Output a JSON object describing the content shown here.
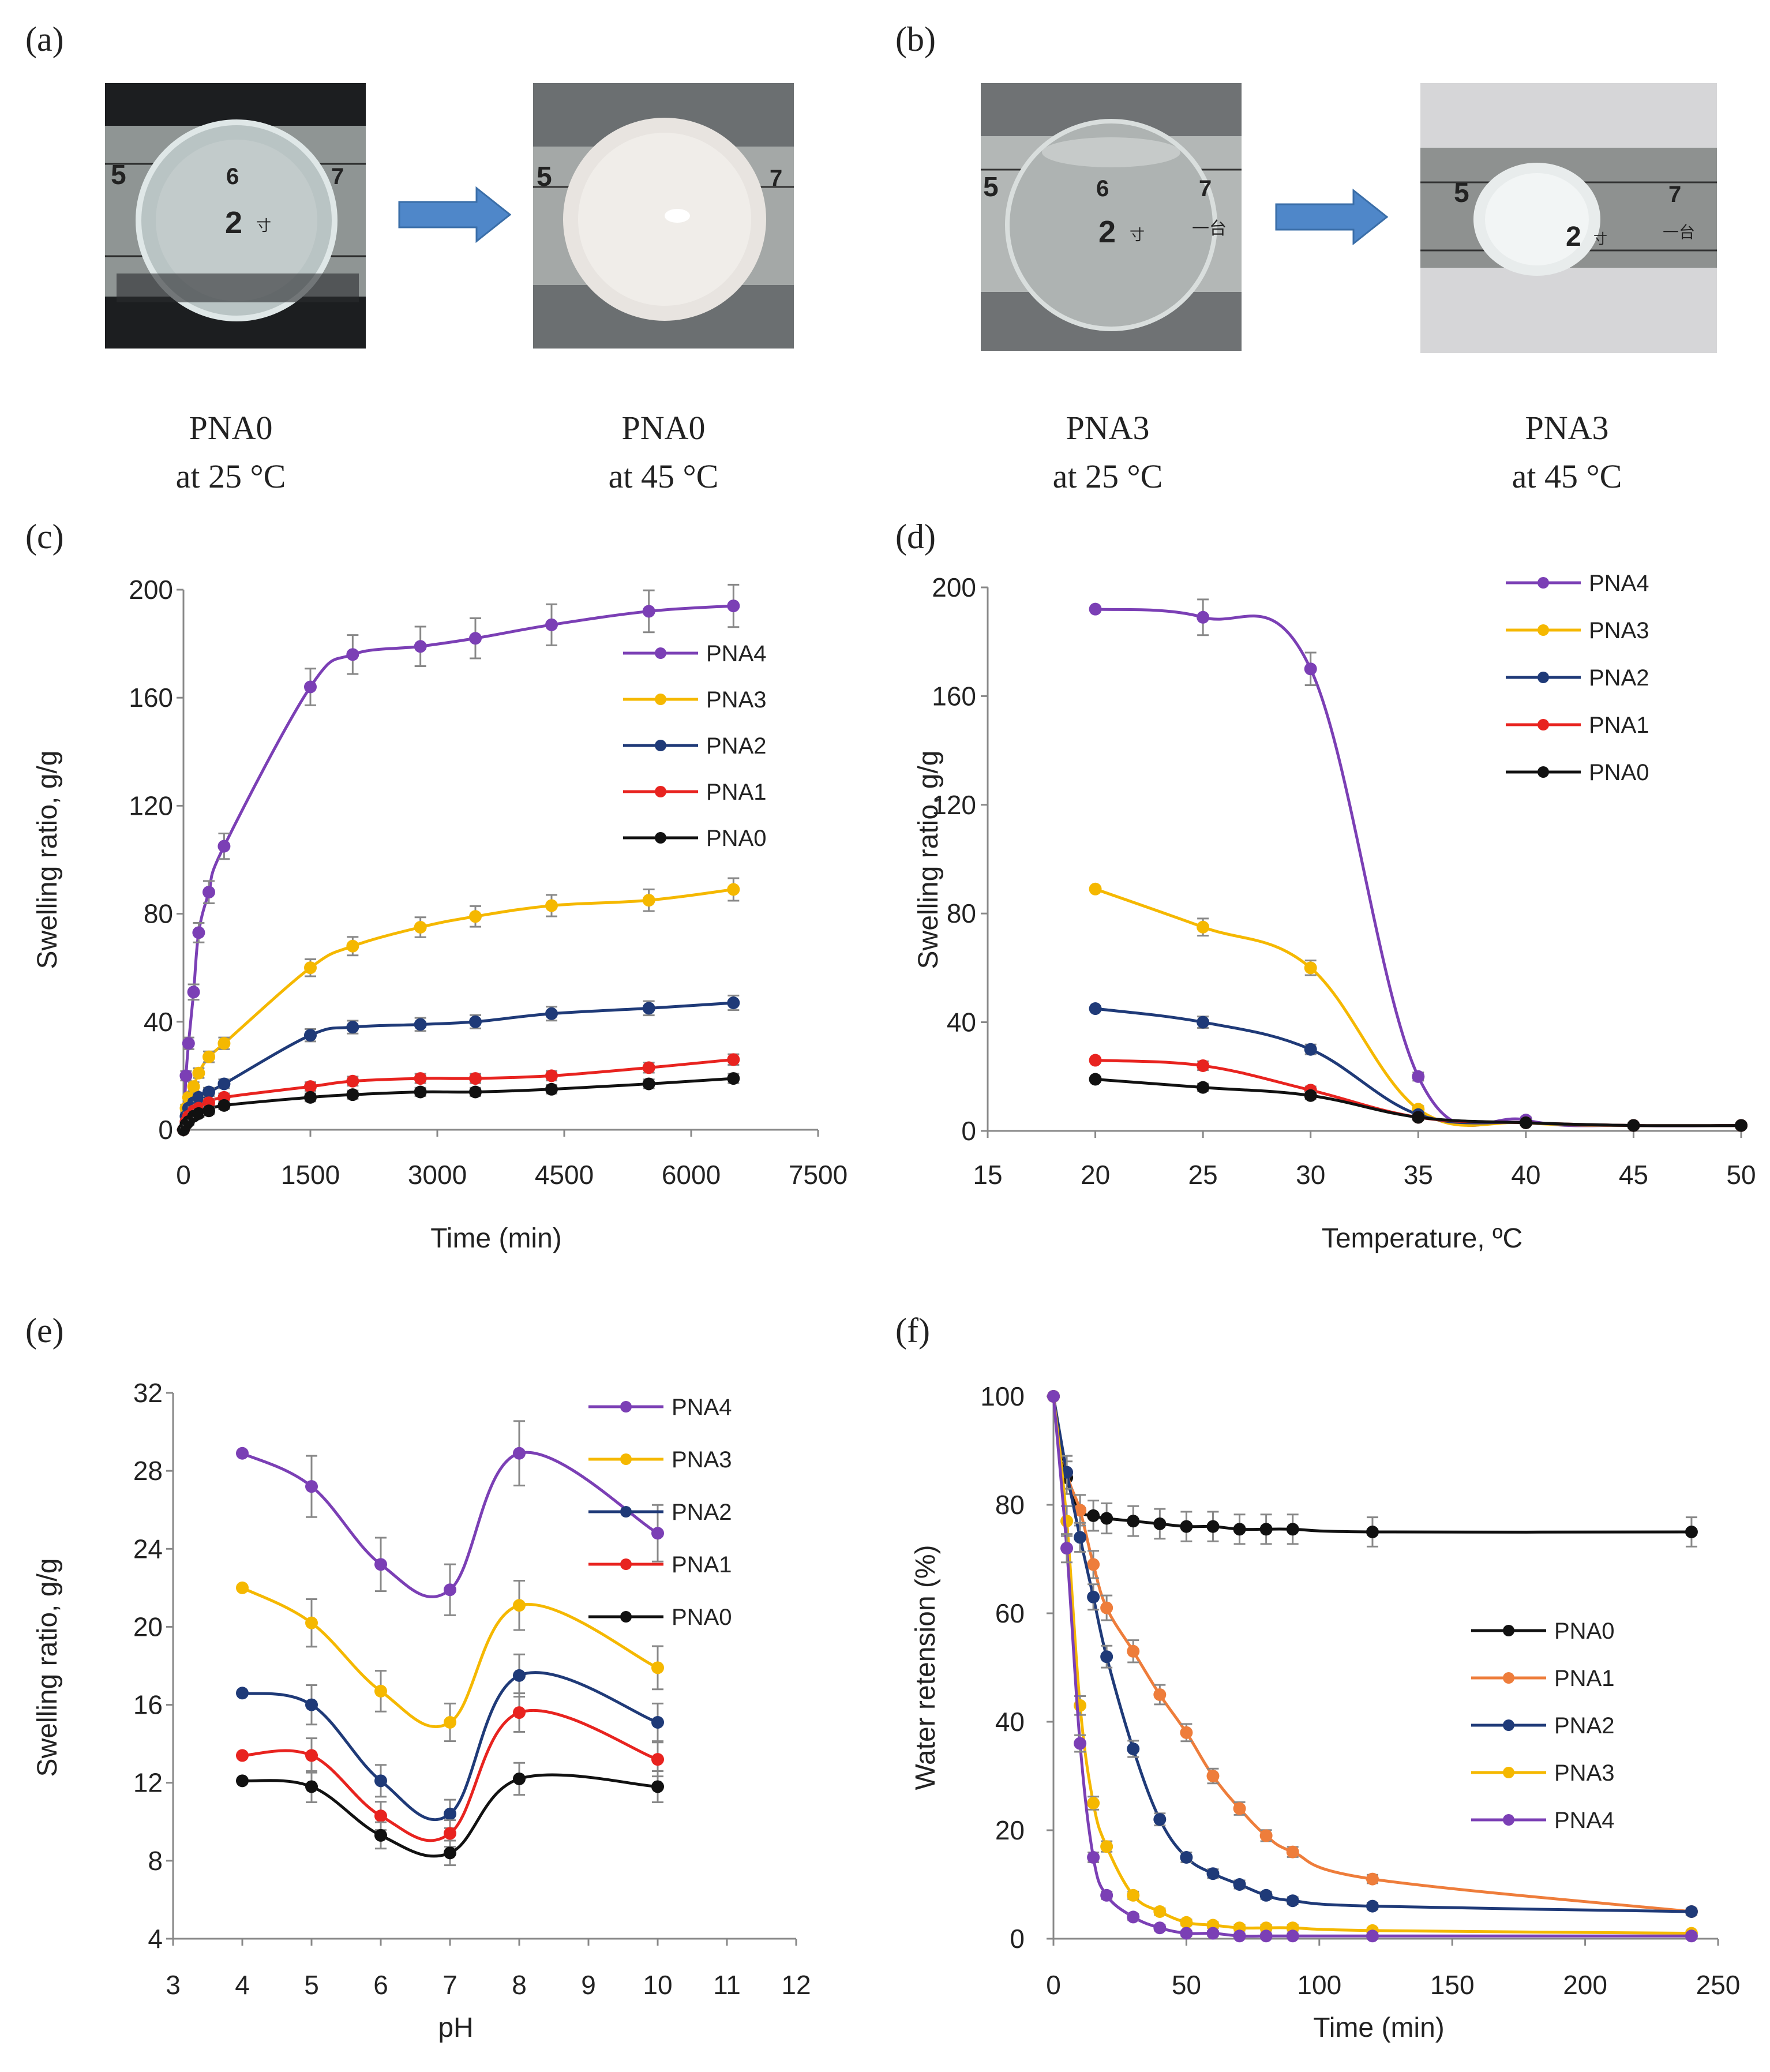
{
  "panel_labels": {
    "a": "(a)",
    "b": "(b)",
    "c": "(c)",
    "d": "(d)",
    "e": "(e)",
    "f": "(f)"
  },
  "photos": {
    "captions": [
      {
        "name": "PNA0",
        "cond": "at 25 °C"
      },
      {
        "name": "PNA0",
        "cond": "at 45 °C"
      },
      {
        "name": "PNA3",
        "cond": "at 25 °C"
      },
      {
        "name": "PNA3",
        "cond": "at 45 °C"
      }
    ],
    "ruler_numbers": {
      "p1": [
        "5",
        "6",
        "7",
        "2",
        "寸"
      ],
      "p2": [
        "5",
        "7"
      ],
      "p3": [
        "5",
        "6",
        "7",
        "2",
        "寸",
        "一台"
      ],
      "p4": [
        "5",
        "7",
        "2",
        "寸",
        "一台"
      ]
    }
  },
  "colors": {
    "PNA4": "#7b3fb5",
    "PNA3": "#f5b800",
    "PNA2": "#1f3a78",
    "PNA1": "#e8231f",
    "PNA0": "#111111",
    "PNA1_f": "#ee7d3b"
  },
  "chart_data": [
    {
      "id": "c",
      "type": "line",
      "title": "",
      "xlabel": "Time (min)",
      "ylabel": "Swelling ratio, g/g",
      "xlim": [
        0,
        7500
      ],
      "ylim": [
        0,
        200
      ],
      "xticks": [
        "0",
        "1500",
        "3000",
        "4500",
        "6000",
        "7500"
      ],
      "yticks": [
        "0",
        "40",
        "80",
        "120",
        "160",
        "200"
      ],
      "legend_position": "top-right",
      "series": [
        {
          "name": "PNA4",
          "x": [
            0,
            30,
            60,
            120,
            180,
            300,
            480,
            1500,
            2000,
            2800,
            3450,
            4350,
            5500,
            6500
          ],
          "y": [
            0,
            20,
            32,
            51,
            73,
            88,
            105,
            164,
            176,
            179,
            182,
            187,
            192,
            194
          ]
        },
        {
          "name": "PNA3",
          "x": [
            0,
            30,
            60,
            120,
            180,
            300,
            480,
            1500,
            2000,
            2800,
            3450,
            4350,
            5500,
            6500
          ],
          "y": [
            0,
            8,
            12,
            16,
            21,
            27,
            32,
            60,
            68,
            75,
            79,
            83,
            85,
            89
          ]
        },
        {
          "name": "PNA2",
          "x": [
            0,
            30,
            60,
            120,
            180,
            300,
            480,
            1500,
            2000,
            2800,
            3450,
            4350,
            5500,
            6500
          ],
          "y": [
            0,
            5,
            8,
            10,
            12,
            14,
            17,
            35,
            38,
            39,
            40,
            43,
            45,
            47
          ]
        },
        {
          "name": "PNA1",
          "x": [
            0,
            30,
            60,
            120,
            180,
            300,
            480,
            1500,
            2000,
            2800,
            3450,
            4350,
            5500,
            6500
          ],
          "y": [
            0,
            3,
            5,
            7,
            8,
            10,
            12,
            16,
            18,
            19,
            19,
            20,
            23,
            26
          ]
        },
        {
          "name": "PNA0",
          "x": [
            0,
            30,
            60,
            120,
            180,
            300,
            480,
            1500,
            2000,
            2800,
            3450,
            4350,
            5500,
            6500
          ],
          "y": [
            0,
            2,
            3,
            5,
            6,
            7,
            9,
            12,
            13,
            14,
            14,
            15,
            17,
            19
          ]
        }
      ]
    },
    {
      "id": "d",
      "type": "line",
      "title": "",
      "xlabel": "Temperature, ºC",
      "ylabel": "Swelling ratio, g/g",
      "xlim": [
        15,
        50
      ],
      "ylim": [
        0,
        200
      ],
      "xticks": [
        "15",
        "20",
        "25",
        "30",
        "35",
        "40",
        "45",
        "50"
      ],
      "yticks": [
        "0",
        "40",
        "80",
        "120",
        "160",
        "200"
      ],
      "legend_position": "top-right",
      "series": [
        {
          "name": "PNA4",
          "x": [
            20,
            25,
            30,
            35,
            40,
            45,
            50
          ],
          "y": [
            192,
            189,
            170,
            20,
            4,
            2,
            2
          ]
        },
        {
          "name": "PNA3",
          "x": [
            20,
            25,
            30,
            35,
            40,
            45,
            50
          ],
          "y": [
            89,
            75,
            60,
            8,
            3,
            2,
            2
          ]
        },
        {
          "name": "PNA2",
          "x": [
            20,
            25,
            30,
            35,
            40,
            45,
            50
          ],
          "y": [
            45,
            40,
            30,
            6,
            3,
            2,
            2
          ]
        },
        {
          "name": "PNA1",
          "x": [
            20,
            25,
            30,
            35,
            40,
            45,
            50
          ],
          "y": [
            26,
            24,
            15,
            5,
            3,
            2,
            2
          ]
        },
        {
          "name": "PNA0",
          "x": [
            20,
            25,
            30,
            35,
            40,
            45,
            50
          ],
          "y": [
            19,
            16,
            13,
            5,
            3,
            2,
            2
          ]
        }
      ]
    },
    {
      "id": "e",
      "type": "line",
      "title": "",
      "xlabel": "pH",
      "ylabel": "Swelling ratio, g/g",
      "xlim": [
        3,
        12
      ],
      "ylim": [
        4,
        32
      ],
      "xticks": [
        "3",
        "4",
        "5",
        "6",
        "7",
        "8",
        "9",
        "10",
        "11",
        "12"
      ],
      "yticks": [
        "4",
        "8",
        "12",
        "16",
        "20",
        "24",
        "28",
        "32"
      ],
      "legend_position": "top-right",
      "series": [
        {
          "name": "PNA4",
          "x": [
            4,
            5,
            6,
            7,
            8,
            10
          ],
          "y": [
            28.9,
            27.2,
            23.2,
            21.9,
            28.9,
            24.8
          ]
        },
        {
          "name": "PNA3",
          "x": [
            4,
            5,
            6,
            7,
            8,
            10
          ],
          "y": [
            22.0,
            20.2,
            16.7,
            15.1,
            21.1,
            17.9
          ]
        },
        {
          "name": "PNA2",
          "x": [
            4,
            5,
            6,
            7,
            8,
            10
          ],
          "y": [
            16.6,
            16.0,
            12.1,
            10.4,
            17.5,
            15.1
          ]
        },
        {
          "name": "PNA1",
          "x": [
            4,
            5,
            6,
            7,
            8,
            10
          ],
          "y": [
            13.4,
            13.4,
            10.3,
            9.4,
            15.6,
            13.2
          ]
        },
        {
          "name": "PNA0",
          "x": [
            4,
            5,
            6,
            7,
            8,
            10
          ],
          "y": [
            12.1,
            11.8,
            9.3,
            8.4,
            12.2,
            11.8
          ]
        }
      ]
    },
    {
      "id": "f",
      "type": "line",
      "title": "",
      "xlabel": "Time (min)",
      "ylabel": "Water retension (%)",
      "xlim": [
        0,
        250
      ],
      "ylim": [
        0,
        100
      ],
      "xticks": [
        "0",
        "50",
        "100",
        "150",
        "200",
        "250"
      ],
      "yticks": [
        "0",
        "20",
        "40",
        "60",
        "80",
        "100"
      ],
      "legend_position": "center-right",
      "series": [
        {
          "name": "PNA0",
          "x": [
            0,
            5,
            10,
            15,
            20,
            30,
            40,
            50,
            60,
            70,
            80,
            90,
            120,
            240
          ],
          "y": [
            100,
            85,
            79,
            78,
            77.5,
            77,
            76.5,
            76,
            76,
            75.5,
            75.5,
            75.5,
            75,
            75
          ]
        },
        {
          "name": "PNA1",
          "x": [
            0,
            5,
            10,
            15,
            20,
            30,
            40,
            50,
            60,
            70,
            80,
            90,
            120,
            240
          ],
          "y": [
            100,
            86,
            79,
            69,
            61,
            53,
            45,
            38,
            30,
            24,
            19,
            16,
            11,
            5
          ]
        },
        {
          "name": "PNA2",
          "x": [
            0,
            5,
            10,
            15,
            20,
            30,
            40,
            50,
            60,
            70,
            80,
            90,
            120,
            240
          ],
          "y": [
            100,
            86,
            74,
            63,
            52,
            35,
            22,
            15,
            12,
            10,
            8,
            7,
            6,
            5
          ]
        },
        {
          "name": "PNA3",
          "x": [
            0,
            5,
            10,
            15,
            20,
            30,
            40,
            50,
            60,
            70,
            80,
            90,
            120,
            240
          ],
          "y": [
            100,
            77,
            43,
            25,
            17,
            8,
            5,
            3,
            2.5,
            2,
            2,
            2,
            1.5,
            1
          ]
        },
        {
          "name": "PNA4",
          "x": [
            0,
            5,
            10,
            15,
            20,
            30,
            40,
            50,
            60,
            70,
            80,
            90,
            120,
            240
          ],
          "y": [
            100,
            72,
            36,
            15,
            8,
            4,
            2,
            1,
            1,
            0.5,
            0.5,
            0.5,
            0.5,
            0.5
          ]
        }
      ]
    }
  ]
}
